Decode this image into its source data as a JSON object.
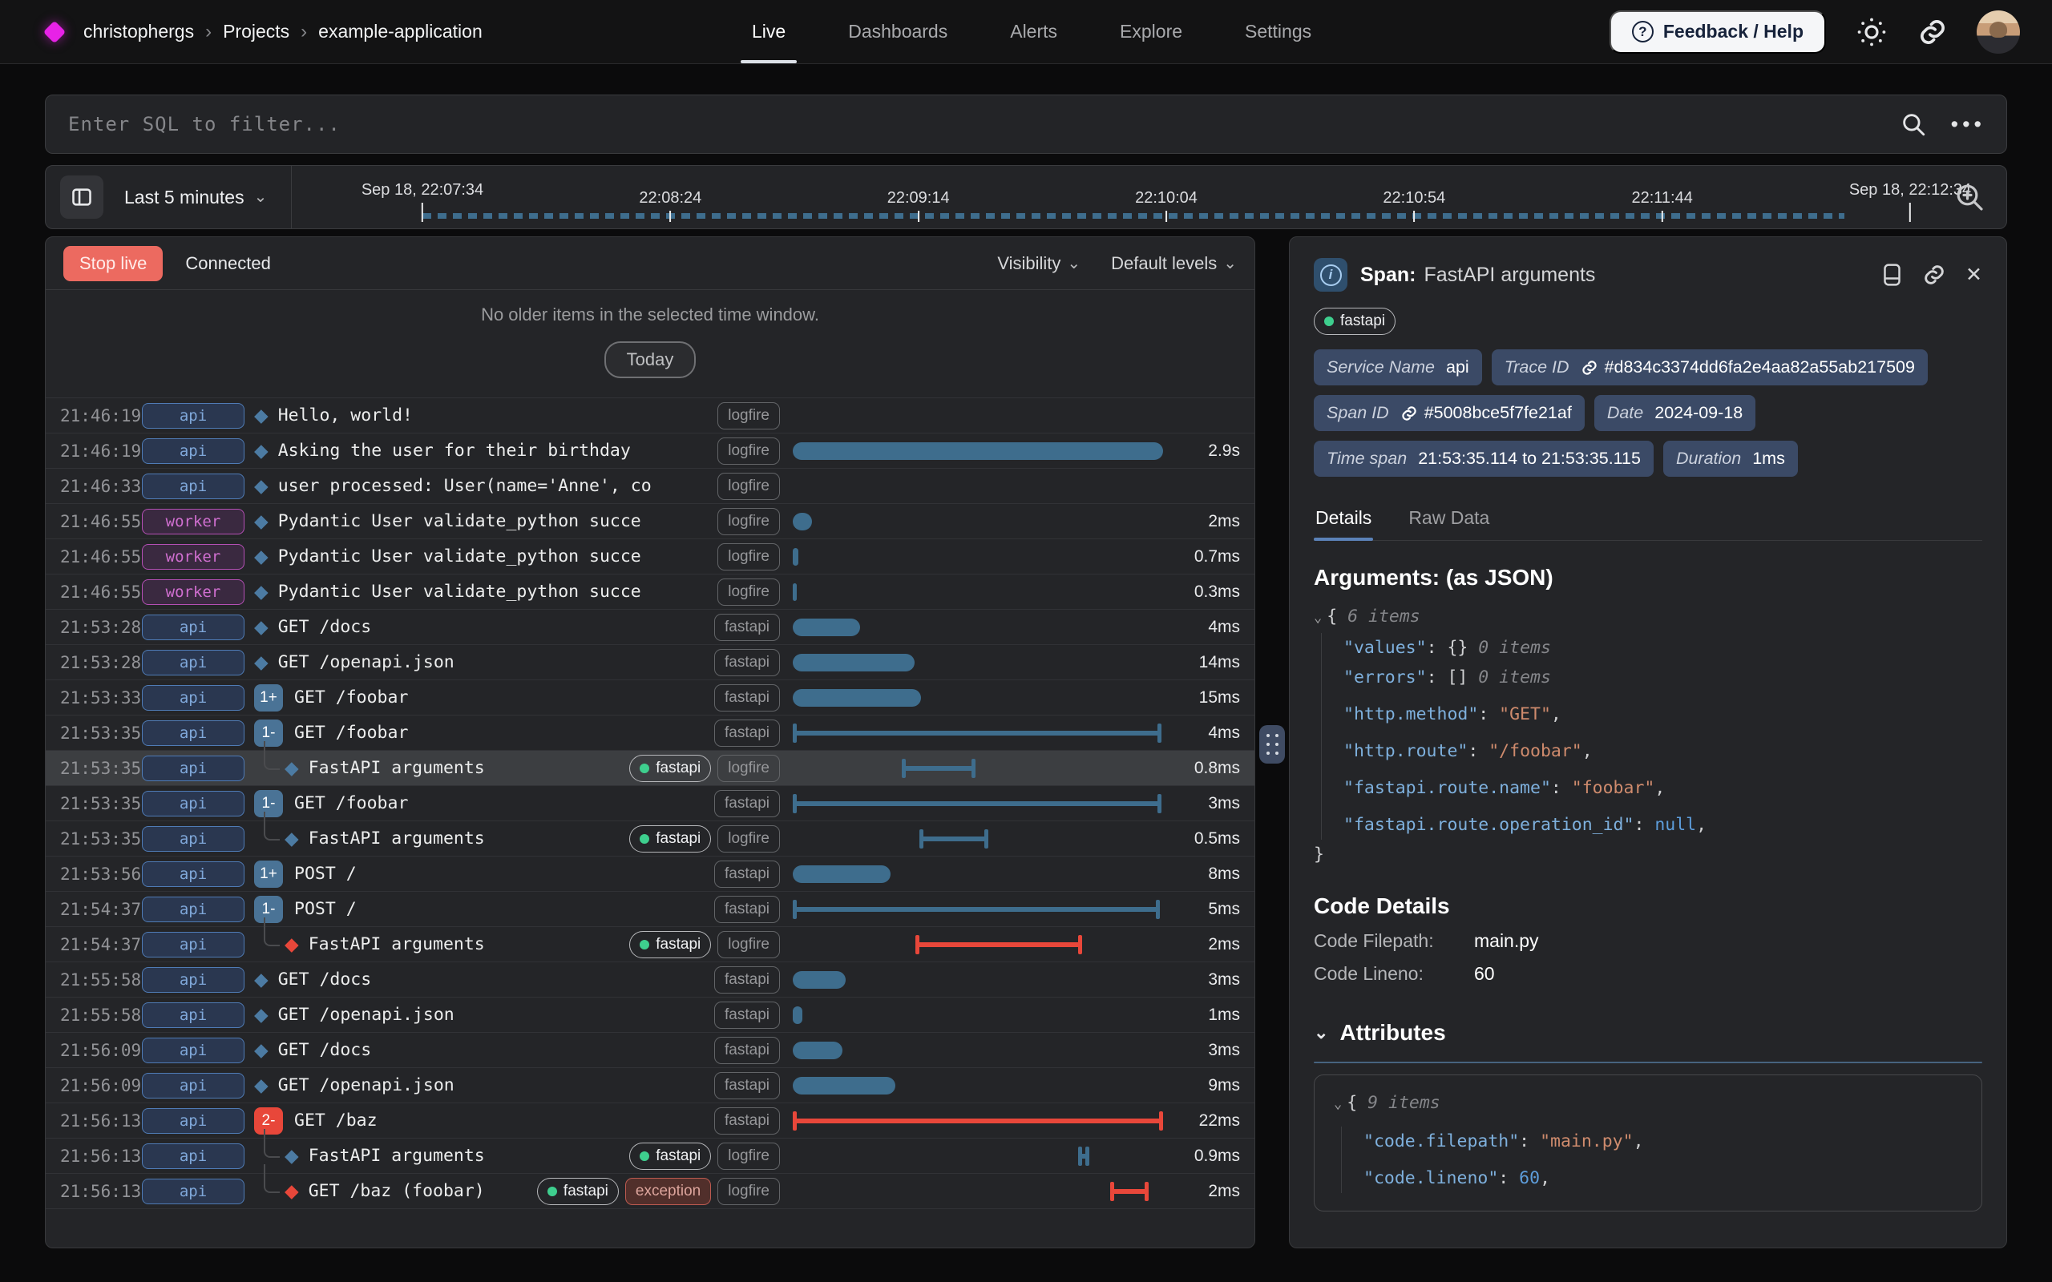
{
  "nav": {
    "breadcrumb": [
      "christophergs",
      "Projects",
      "example-application"
    ],
    "items": [
      {
        "label": "Live",
        "active": true
      },
      {
        "label": "Dashboards",
        "active": false
      },
      {
        "label": "Alerts",
        "active": false
      },
      {
        "label": "Explore",
        "active": false
      },
      {
        "label": "Settings",
        "active": false
      }
    ],
    "feedback_label": "Feedback / Help"
  },
  "filter": {
    "placeholder": "Enter SQL to filter..."
  },
  "timeline": {
    "range_label": "Last 5 minutes",
    "ticks": [
      "Sep 18, 22:07:34",
      "22:08:24",
      "22:09:14",
      "22:10:04",
      "22:10:54",
      "22:11:44",
      "Sep 18, 22:12:34"
    ]
  },
  "live": {
    "stop_label": "Stop live",
    "status": "Connected",
    "visibility_label": "Visibility",
    "levels_label": "Default levels",
    "empty_message": "No older items in the selected time window.",
    "today_label": "Today"
  },
  "rows": [
    {
      "time": "21:46:19",
      "env": "api",
      "diamond": "blue",
      "message": "Hello, world!",
      "tags": [
        [
          "logfire",
          "plain"
        ]
      ],
      "bar": null,
      "duration": ""
    },
    {
      "time": "21:46:19",
      "env": "api",
      "diamond": "blue",
      "message": "Asking the user for their birthday",
      "tags": [
        [
          "logfire",
          "plain"
        ]
      ],
      "bar": [
        "bar",
        "blue",
        2,
        462
      ],
      "duration": "2.9s"
    },
    {
      "time": "21:46:33",
      "env": "api",
      "diamond": "blue",
      "message": "user processed: User(name='Anne', co",
      "tags": [
        [
          "logfire",
          "plain"
        ]
      ],
      "bar": null,
      "duration": ""
    },
    {
      "time": "21:46:55",
      "env": "worker",
      "diamond": "blue",
      "message": "Pydantic User validate_python succe",
      "tags": [
        [
          "logfire",
          "plain"
        ]
      ],
      "bar": [
        "bar",
        "blue",
        2,
        24
      ],
      "duration": "2ms"
    },
    {
      "time": "21:46:55",
      "env": "worker",
      "diamond": "blue",
      "message": "Pydantic User validate_python succe",
      "tags": [
        [
          "logfire",
          "plain"
        ]
      ],
      "bar": [
        "bar",
        "blue",
        2,
        7
      ],
      "duration": "0.7ms"
    },
    {
      "time": "21:46:55",
      "env": "worker",
      "diamond": "blue",
      "message": "Pydantic User validate_python succe",
      "tags": [
        [
          "logfire",
          "plain"
        ]
      ],
      "bar": [
        "bar",
        "blue",
        2,
        5
      ],
      "duration": "0.3ms"
    },
    {
      "time": "21:53:28",
      "env": "api",
      "diamond": "blue",
      "message": "GET /docs",
      "tags": [
        [
          "fastapi",
          "plain"
        ]
      ],
      "bar": [
        "bar",
        "blue",
        2,
        84
      ],
      "duration": "4ms"
    },
    {
      "time": "21:53:28",
      "env": "api",
      "diamond": "blue",
      "message": "GET /openapi.json",
      "tags": [
        [
          "fastapi",
          "plain"
        ]
      ],
      "bar": [
        "bar",
        "blue",
        2,
        152
      ],
      "duration": "14ms"
    },
    {
      "time": "21:53:33",
      "env": "api",
      "badge": [
        "1+",
        "blue"
      ],
      "message": "GET /foobar",
      "tags": [
        [
          "fastapi",
          "plain"
        ]
      ],
      "bar": [
        "bar",
        "blue",
        2,
        160
      ],
      "duration": "15ms"
    },
    {
      "time": "21:53:35",
      "env": "api",
      "badge": [
        "1-",
        "blue"
      ],
      "message": "GET /foobar",
      "tags": [
        [
          "fastapi",
          "plain"
        ]
      ],
      "bar": [
        "whisker",
        "blue",
        2,
        460
      ],
      "duration": "4ms"
    },
    {
      "time": "21:53:35",
      "env": "api",
      "child": true,
      "diamond": "blue",
      "selected": true,
      "message": "FastAPI arguments",
      "tags": [
        [
          "fastapi",
          "dot"
        ],
        [
          "logfire",
          "plain"
        ]
      ],
      "bar": [
        "whisker",
        "blue",
        138,
        92
      ],
      "duration": "0.8ms"
    },
    {
      "time": "21:53:35",
      "env": "api",
      "badge": [
        "1-",
        "blue"
      ],
      "message": "GET /foobar",
      "tags": [
        [
          "fastapi",
          "plain"
        ]
      ],
      "bar": [
        "whisker",
        "blue",
        2,
        460
      ],
      "duration": "3ms"
    },
    {
      "time": "21:53:35",
      "env": "api",
      "child": true,
      "diamond": "blue",
      "message": "FastAPI arguments",
      "tags": [
        [
          "fastapi",
          "dot"
        ],
        [
          "logfire",
          "plain"
        ]
      ],
      "bar": [
        "whisker",
        "blue",
        160,
        86
      ],
      "duration": "0.5ms"
    },
    {
      "time": "21:53:56",
      "env": "api",
      "badge": [
        "1+",
        "blue"
      ],
      "message": "POST /",
      "tags": [
        [
          "fastapi",
          "plain"
        ]
      ],
      "bar": [
        "bar",
        "blue",
        2,
        122
      ],
      "duration": "8ms"
    },
    {
      "time": "21:54:37",
      "env": "api",
      "badge": [
        "1-",
        "blue"
      ],
      "message": "POST /",
      "tags": [
        [
          "fastapi",
          "plain"
        ]
      ],
      "bar": [
        "whisker",
        "blue",
        2,
        458
      ],
      "duration": "5ms"
    },
    {
      "time": "21:54:37",
      "env": "api",
      "child": true,
      "diamond": "red",
      "message": "FastAPI arguments",
      "tags": [
        [
          "fastapi",
          "dot"
        ],
        [
          "logfire",
          "plain"
        ]
      ],
      "bar": [
        "whisker",
        "red",
        155,
        208
      ],
      "duration": "2ms"
    },
    {
      "time": "21:55:58",
      "env": "api",
      "diamond": "blue",
      "message": "GET /docs",
      "tags": [
        [
          "fastapi",
          "plain"
        ]
      ],
      "bar": [
        "bar",
        "blue",
        2,
        66
      ],
      "duration": "3ms"
    },
    {
      "time": "21:55:58",
      "env": "api",
      "diamond": "blue",
      "message": "GET /openapi.json",
      "tags": [
        [
          "fastapi",
          "plain"
        ]
      ],
      "bar": [
        "bar",
        "blue",
        2,
        12
      ],
      "duration": "1ms"
    },
    {
      "time": "21:56:09",
      "env": "api",
      "diamond": "blue",
      "message": "GET /docs",
      "tags": [
        [
          "fastapi",
          "plain"
        ]
      ],
      "bar": [
        "bar",
        "blue",
        2,
        62
      ],
      "duration": "3ms"
    },
    {
      "time": "21:56:09",
      "env": "api",
      "diamond": "blue",
      "message": "GET /openapi.json",
      "tags": [
        [
          "fastapi",
          "plain"
        ]
      ],
      "bar": [
        "bar",
        "blue",
        2,
        128
      ],
      "duration": "9ms"
    },
    {
      "time": "21:56:13",
      "env": "api",
      "badge": [
        "2-",
        "red"
      ],
      "message": "GET /baz",
      "tags": [
        [
          "fastapi",
          "plain"
        ]
      ],
      "bar": [
        "whisker",
        "red",
        2,
        462
      ],
      "duration": "22ms"
    },
    {
      "time": "21:56:13",
      "env": "api",
      "child": true,
      "diamond": "blue",
      "message": "FastAPI arguments",
      "tags": [
        [
          "fastapi",
          "dot"
        ],
        [
          "logfire",
          "plain"
        ]
      ],
      "bar": [
        "whisker",
        "blue",
        358,
        14
      ],
      "duration": "0.9ms"
    },
    {
      "time": "21:56:13",
      "env": "api",
      "child": true,
      "diamond": "red",
      "message": "GET /baz (foobar)",
      "tags": [
        [
          "fastapi",
          "dot"
        ],
        [
          "exception",
          "error"
        ],
        [
          "logfire",
          "plain"
        ]
      ],
      "bar": [
        "whisker",
        "red",
        398,
        48
      ],
      "duration": "2ms"
    }
  ],
  "detail": {
    "title_prefix": "Span:",
    "title": "FastAPI arguments",
    "tag": "fastapi",
    "meta": [
      {
        "label": "Service Name",
        "value": "api",
        "link": false
      },
      {
        "label": "Trace ID",
        "value": "#d834c3374dd6fa2e4aa82a55ab217509",
        "link": true
      },
      {
        "label": "Span ID",
        "value": "#5008bce5f7fe21af",
        "link": true
      },
      {
        "label": "Date",
        "value": "2024-09-18",
        "link": false
      },
      {
        "label": "Time span",
        "value": "21:53:35.114 to 21:53:35.115",
        "link": false
      },
      {
        "label": "Duration",
        "value": "1ms",
        "link": false
      }
    ],
    "tabs": [
      {
        "label": "Details",
        "active": true
      },
      {
        "label": "Raw Data",
        "active": false
      }
    ],
    "arguments_heading": {
      "main": "Arguments:",
      "suffix": " (as JSON)"
    },
    "arguments_json": [
      {
        "indent": 0,
        "chev": true,
        "seg": [
          [
            "br",
            "{ "
          ],
          [
            "note",
            "6 items"
          ]
        ]
      },
      {
        "indent": 1,
        "seg": [
          [
            "key",
            "\"values\""
          ],
          [
            "br",
            ": "
          ],
          [
            "br",
            "{}"
          ],
          [
            "note",
            " 0 items"
          ]
        ]
      },
      {
        "indent": 1,
        "seg": [
          [
            "key",
            "\"errors\""
          ],
          [
            "br",
            ": "
          ],
          [
            "br",
            "[]"
          ],
          [
            "note",
            " 0 items"
          ]
        ]
      },
      {
        "indent": 1,
        "gap": true,
        "seg": [
          [
            "key",
            "\"http.method\""
          ],
          [
            "br",
            ": "
          ],
          [
            "str",
            "\"GET\""
          ],
          [
            "br",
            ","
          ]
        ]
      },
      {
        "indent": 1,
        "gap": true,
        "seg": [
          [
            "key",
            "\"http.route\""
          ],
          [
            "br",
            ": "
          ],
          [
            "str",
            "\"/foobar\""
          ],
          [
            "br",
            ","
          ]
        ]
      },
      {
        "indent": 1,
        "gap": true,
        "seg": [
          [
            "key",
            "\"fastapi.route.name\""
          ],
          [
            "br",
            ": "
          ],
          [
            "str",
            "\"foobar\""
          ],
          [
            "br",
            ","
          ]
        ]
      },
      {
        "indent": 1,
        "gap": true,
        "seg": [
          [
            "key",
            "\"fastapi.route.operation_id\""
          ],
          [
            "br",
            ": "
          ],
          [
            "null",
            "null"
          ],
          [
            "br",
            ","
          ]
        ]
      },
      {
        "indent": 0,
        "seg": [
          [
            "br",
            "}"
          ]
        ]
      }
    ],
    "code_details": {
      "heading": "Code Details",
      "filepath_label": "Code Filepath:",
      "filepath": "main.py",
      "lineno_label": "Code Lineno:",
      "lineno": "60"
    },
    "attributes": {
      "heading": "Attributes",
      "json": [
        {
          "indent": 0,
          "chev": true,
          "seg": [
            [
              "br",
              "{ "
            ],
            [
              "note",
              "9 items"
            ]
          ]
        },
        {
          "indent": 1,
          "gap": true,
          "seg": [
            [
              "key",
              "\"code.filepath\""
            ],
            [
              "br",
              ": "
            ],
            [
              "str",
              "\"main.py\""
            ],
            [
              "br",
              ","
            ]
          ]
        },
        {
          "indent": 1,
          "gap": true,
          "seg": [
            [
              "key",
              "\"code.lineno\""
            ],
            [
              "br",
              ": "
            ],
            [
              "num",
              "60"
            ],
            [
              "br",
              ","
            ]
          ]
        }
      ]
    }
  },
  "colors": {
    "accent": "#5b82b8",
    "bar_blue": "#3e6d8d",
    "bar_red": "#e8473a",
    "brand_magenta": "#e722e7",
    "tag_green": "#3ecf8e",
    "stop_live": "#ec6a60",
    "meta_pill": "#3b4a66",
    "env_api": "#7fa7d9",
    "env_worker": "#d06fd0"
  }
}
